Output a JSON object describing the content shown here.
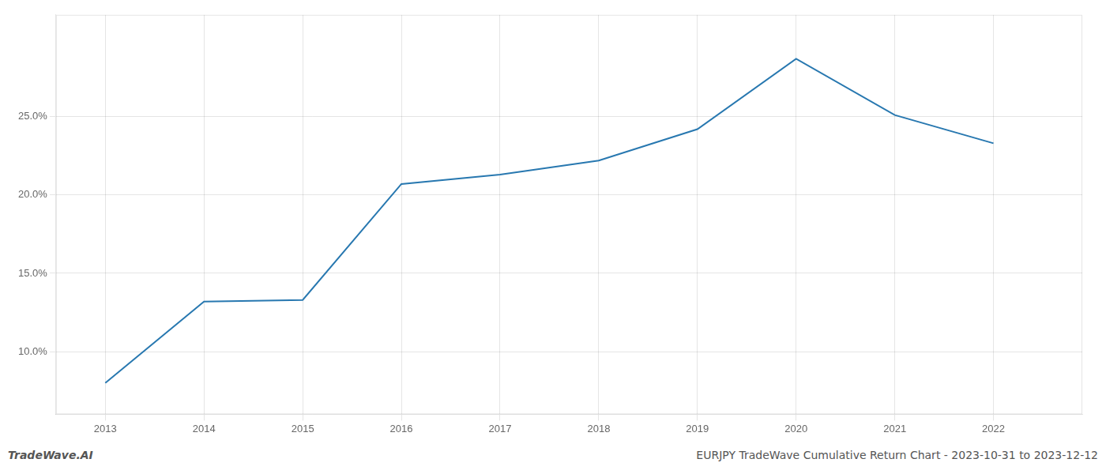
{
  "chart_data": {
    "type": "line",
    "x": [
      2013,
      2014,
      2015,
      2016,
      2017,
      2018,
      2019,
      2020,
      2021,
      2022
    ],
    "values": [
      8.0,
      13.2,
      13.3,
      20.7,
      21.3,
      22.2,
      24.2,
      28.7,
      25.1,
      23.3
    ],
    "color": "#2878b0",
    "xlim": [
      2012.5,
      2022.9
    ],
    "ylim": [
      6.0,
      31.5
    ],
    "xticks": [
      2013,
      2014,
      2015,
      2016,
      2017,
      2018,
      2019,
      2020,
      2021,
      2022
    ],
    "yticks": [
      {
        "value": 10.0,
        "label": "10.0%"
      },
      {
        "value": 15.0,
        "label": "15.0%"
      },
      {
        "value": 20.0,
        "label": "20.0%"
      },
      {
        "value": 25.0,
        "label": "25.0%"
      }
    ],
    "grid": true,
    "annotations": [
      "TradeWave.AI",
      "EURJPY TradeWave Cumulative Return Chart - 2023-10-31 to 2023-12-12"
    ]
  }
}
